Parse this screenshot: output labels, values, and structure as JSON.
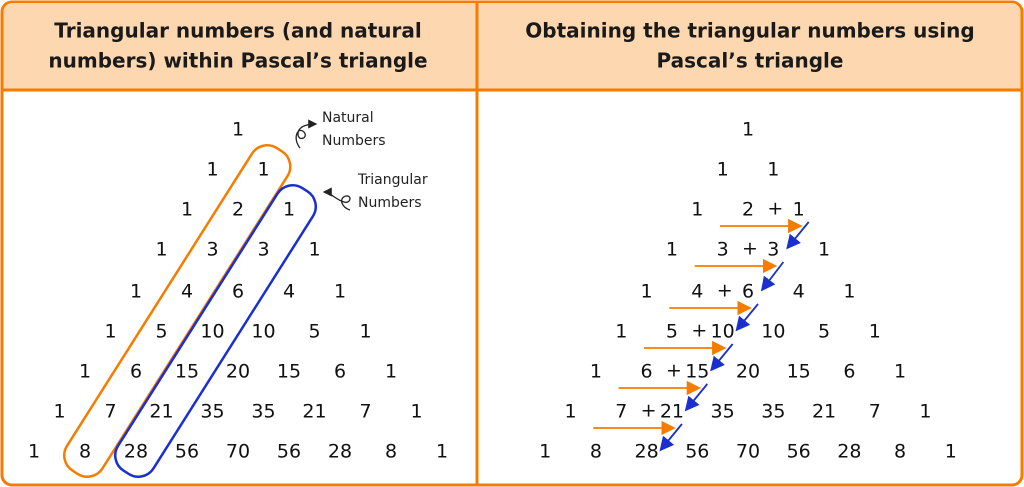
{
  "left": {
    "title_lines": [
      "Triangular numbers (and natural",
      "numbers) within Pascal’s triangle"
    ],
    "rows": [
      [
        1
      ],
      [
        1,
        1
      ],
      [
        1,
        2,
        1
      ],
      [
        1,
        3,
        3,
        1
      ],
      [
        1,
        4,
        6,
        4,
        1
      ],
      [
        1,
        5,
        10,
        10,
        5,
        1
      ],
      [
        1,
        6,
        15,
        20,
        15,
        6,
        1
      ],
      [
        1,
        7,
        21,
        35,
        35,
        21,
        7,
        1
      ],
      [
        1,
        8,
        28,
        56,
        70,
        56,
        28,
        8,
        1
      ]
    ],
    "annotations": [
      {
        "lines": [
          "Natural",
          "Numbers"
        ]
      },
      {
        "lines": [
          "Triangular",
          "Numbers"
        ]
      }
    ]
  },
  "right": {
    "title_lines": [
      "Obtaining the triangular numbers using",
      "Pascal’s triangle"
    ],
    "plus_sign": "+",
    "rows": [
      [
        1
      ],
      [
        1,
        1
      ],
      [
        1,
        2,
        1
      ],
      [
        1,
        3,
        3,
        1
      ],
      [
        1,
        4,
        6,
        4,
        1
      ],
      [
        1,
        5,
        10,
        10,
        5,
        1
      ],
      [
        1,
        6,
        15,
        20,
        15,
        6,
        1
      ],
      [
        1,
        7,
        21,
        35,
        35,
        21,
        7,
        1
      ],
      [
        1,
        8,
        28,
        56,
        70,
        56,
        28,
        8,
        1
      ]
    ]
  }
}
